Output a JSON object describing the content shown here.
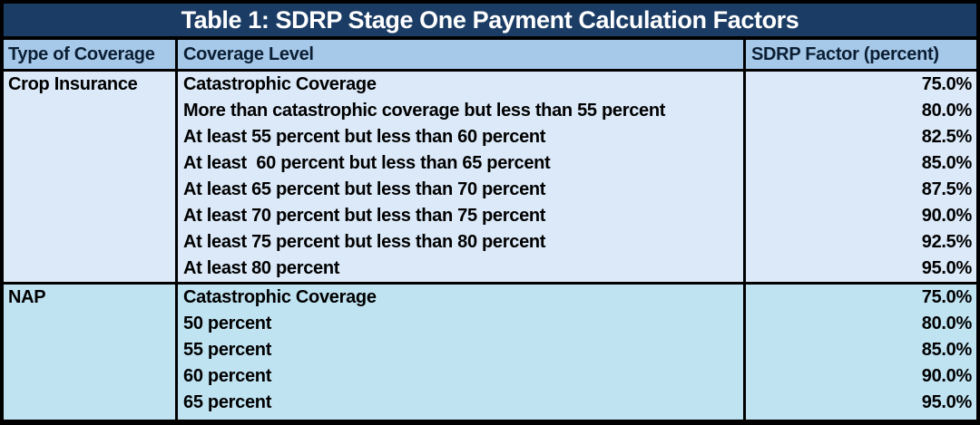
{
  "chart_data": {
    "type": "table",
    "title": "Table 1: SDRP Stage One Payment Calculation Factors",
    "columns": [
      "Type of Coverage",
      "Coverage Level",
      "SDRP Factor (percent)"
    ],
    "sections": [
      {
        "type": "Crop Insurance",
        "rows": [
          {
            "level": "Catastrophic Coverage",
            "factor": "75.0%"
          },
          {
            "level": "More than catastrophic coverage but less than 55 percent",
            "factor": "80.0%"
          },
          {
            "level": "At least 55 percent but less than 60 percent",
            "factor": "82.5%"
          },
          {
            "level": "At least  60 percent but less than 65 percent",
            "factor": "85.0%"
          },
          {
            "level": "At least 65 percent but less than 70 percent",
            "factor": "87.5%"
          },
          {
            "level": "At least 70 percent but less than 75 percent",
            "factor": "90.0%"
          },
          {
            "level": "At least 75 percent but less than 80 percent",
            "factor": "92.5%"
          },
          {
            "level": "At least 80 percent",
            "factor": "95.0%"
          }
        ]
      },
      {
        "type": "NAP",
        "rows": [
          {
            "level": "Catastrophic Coverage",
            "factor": "75.0%"
          },
          {
            "level": "50 percent",
            "factor": "80.0%"
          },
          {
            "level": "55 percent",
            "factor": "85.0%"
          },
          {
            "level": "60 percent",
            "factor": "90.0%"
          },
          {
            "level": "65 percent",
            "factor": "95.0%"
          }
        ]
      }
    ],
    "layout": {
      "legend": "none",
      "grid": "cell-borders"
    }
  },
  "colors": {
    "title_bar_bg": "#1b3c64",
    "title_text": "#ffffff",
    "header_row_bg": "#a6c9e9",
    "crop_insurance_section_bg": "#dbe9f8",
    "nap_section_bg": "#c0e3f2",
    "border": "#000000",
    "body_text": "#000000"
  }
}
